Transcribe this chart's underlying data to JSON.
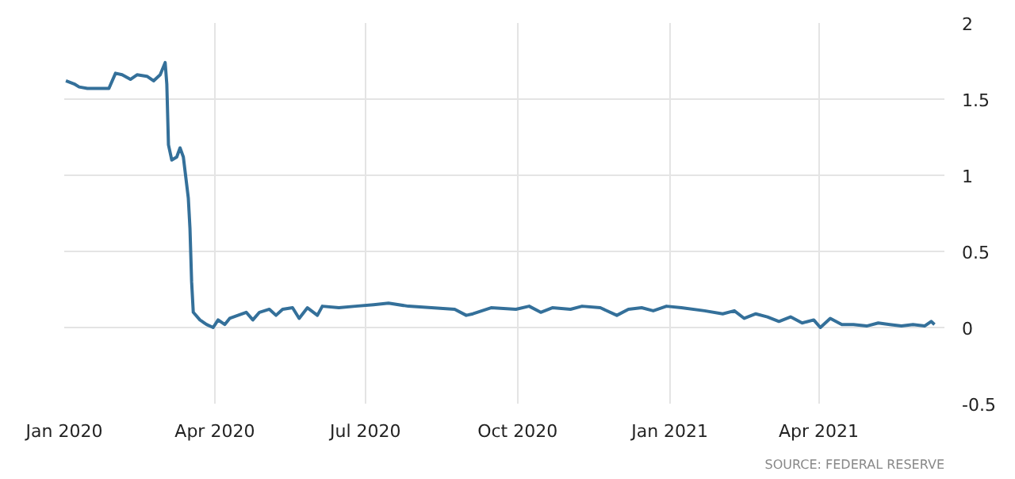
{
  "chart_data": {
    "type": "line",
    "x": [
      "2020-01-02",
      "2020-01-07",
      "2020-01-10",
      "2020-01-15",
      "2020-01-28",
      "2020-02-01",
      "2020-02-05",
      "2020-02-10",
      "2020-02-14",
      "2020-02-20",
      "2020-02-24",
      "2020-02-28",
      "2020-03-02",
      "2020-03-03",
      "2020-03-04",
      "2020-03-06",
      "2020-03-09",
      "2020-03-11",
      "2020-03-13",
      "2020-03-16",
      "2020-03-17",
      "2020-03-18",
      "2020-03-19",
      "2020-03-23",
      "2020-03-27",
      "2020-03-31",
      "2020-04-03",
      "2020-04-07",
      "2020-04-10",
      "2020-04-15",
      "2020-04-20",
      "2020-04-24",
      "2020-04-28",
      "2020-05-04",
      "2020-05-08",
      "2020-05-12",
      "2020-05-18",
      "2020-05-22",
      "2020-05-27",
      "2020-06-02",
      "2020-06-05",
      "2020-06-15",
      "2020-06-25",
      "2020-07-06",
      "2020-07-15",
      "2020-07-27",
      "2020-08-10",
      "2020-08-24",
      "2020-08-31",
      "2020-09-04",
      "2020-09-15",
      "2020-09-30",
      "2020-10-08",
      "2020-10-15",
      "2020-10-22",
      "2020-11-02",
      "2020-11-09",
      "2020-11-20",
      "2020-11-30",
      "2020-12-07",
      "2020-12-15",
      "2020-12-22",
      "2020-12-30",
      "2021-01-08",
      "2021-01-22",
      "2021-02-02",
      "2021-02-09",
      "2021-02-15",
      "2021-02-22",
      "2021-03-01",
      "2021-03-08",
      "2021-03-15",
      "2021-03-22",
      "2021-03-29",
      "2021-04-02",
      "2021-04-08",
      "2021-04-15",
      "2021-04-22",
      "2021-04-30",
      "2021-05-07",
      "2021-05-14",
      "2021-05-21",
      "2021-05-28",
      "2021-06-04",
      "2021-06-08",
      "2021-06-10"
    ],
    "series": [
      {
        "color": "#34709a",
        "values": [
          1.62,
          1.6,
          1.58,
          1.57,
          1.57,
          1.67,
          1.66,
          1.63,
          1.66,
          1.65,
          1.62,
          1.66,
          1.74,
          1.6,
          1.2,
          1.1,
          1.12,
          1.18,
          1.12,
          0.85,
          0.65,
          0.3,
          0.1,
          0.05,
          0.02,
          0.0,
          0.05,
          0.02,
          0.06,
          0.08,
          0.1,
          0.05,
          0.1,
          0.12,
          0.08,
          0.12,
          0.13,
          0.06,
          0.13,
          0.08,
          0.14,
          0.13,
          0.14,
          0.15,
          0.16,
          0.14,
          0.13,
          0.12,
          0.08,
          0.09,
          0.13,
          0.12,
          0.14,
          0.1,
          0.13,
          0.12,
          0.14,
          0.13,
          0.08,
          0.12,
          0.13,
          0.11,
          0.14,
          0.13,
          0.11,
          0.09,
          0.11,
          0.06,
          0.09,
          0.07,
          0.04,
          0.07,
          0.03,
          0.05,
          0.0,
          0.06,
          0.02,
          0.02,
          0.01,
          0.03,
          0.02,
          0.01,
          0.02,
          0.01,
          0.04,
          0.02
        ]
      }
    ],
    "xlim": [
      "2020-01-01",
      "2021-06-16"
    ],
    "xticks": [
      {
        "value": "2020-01-01",
        "label": "Jan 2020"
      },
      {
        "value": "2020-04-01",
        "label": "Apr 2020"
      },
      {
        "value": "2020-07-01",
        "label": "Jul 2020"
      },
      {
        "value": "2020-10-01",
        "label": "Oct 2020"
      },
      {
        "value": "2021-01-01",
        "label": "Jan 2021"
      },
      {
        "value": "2021-04-01",
        "label": "Apr 2021"
      }
    ],
    "ylim": [
      -0.5,
      2
    ],
    "yticks": [
      2,
      1.5,
      1,
      0.5,
      0,
      -0.5
    ],
    "grid": true,
    "line_style": "solid",
    "annotations": [
      "SOURCE: FEDERAL RESERVE"
    ]
  }
}
